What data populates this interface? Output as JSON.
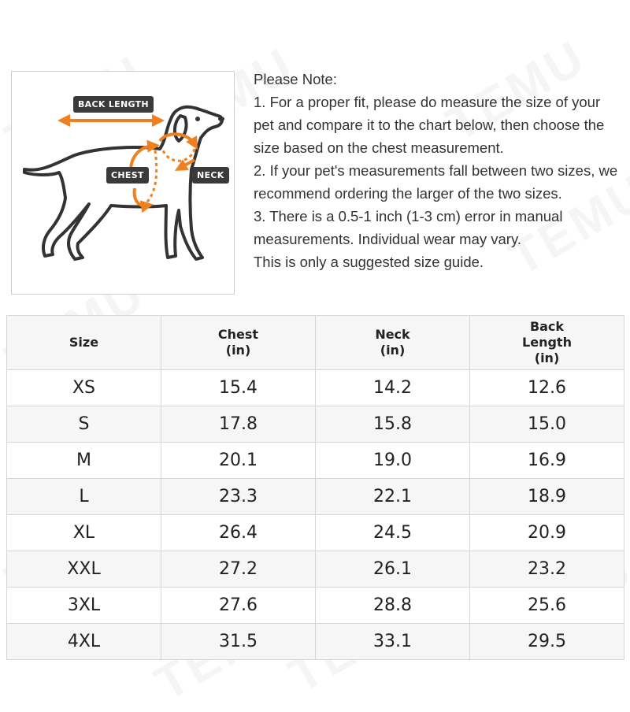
{
  "watermark": "TEMU",
  "figure": {
    "icon": "dog-measurement-illustration",
    "labels": {
      "back_length": "BACK LENGTH",
      "chest": "CHEST",
      "neck": "NECK"
    },
    "accent_color": "#f07f1f"
  },
  "notes": {
    "heading": "Please Note:",
    "lines": [
      "1. For a proper fit, please do measure the size of your pet and compare it to the chart below, then choose the size based on the chest measurement.",
      "2. If your pet's measurements fall between two sizes, we recommend ordering the larger of the two sizes.",
      "3. There is a 0.5-1 inch (1-3 cm) error in manual measurements. Individual wear may vary.",
      "This is only a suggested size guide."
    ]
  },
  "table": {
    "headers": {
      "size": "Size",
      "chest": [
        "Chest",
        "(in)"
      ],
      "neck": [
        "Neck",
        "(in)"
      ],
      "back_length": [
        "Back",
        "Length",
        "(in)"
      ]
    },
    "rows": [
      {
        "size": "XS",
        "chest": "15.4",
        "neck": "14.2",
        "back": "12.6"
      },
      {
        "size": "S",
        "chest": "17.8",
        "neck": "15.8",
        "back": "15.0"
      },
      {
        "size": "M",
        "chest": "20.1",
        "neck": "19.0",
        "back": "16.9"
      },
      {
        "size": "L",
        "chest": "23.3",
        "neck": "22.1",
        "back": "18.9"
      },
      {
        "size": "XL",
        "chest": "26.4",
        "neck": "24.5",
        "back": "20.9"
      },
      {
        "size": "XXL",
        "chest": "27.2",
        "neck": "26.1",
        "back": "23.2"
      },
      {
        "size": "3XL",
        "chest": "27.6",
        "neck": "28.8",
        "back": "25.6"
      },
      {
        "size": "4XL",
        "chest": "31.5",
        "neck": "33.1",
        "back": "29.5"
      }
    ]
  }
}
